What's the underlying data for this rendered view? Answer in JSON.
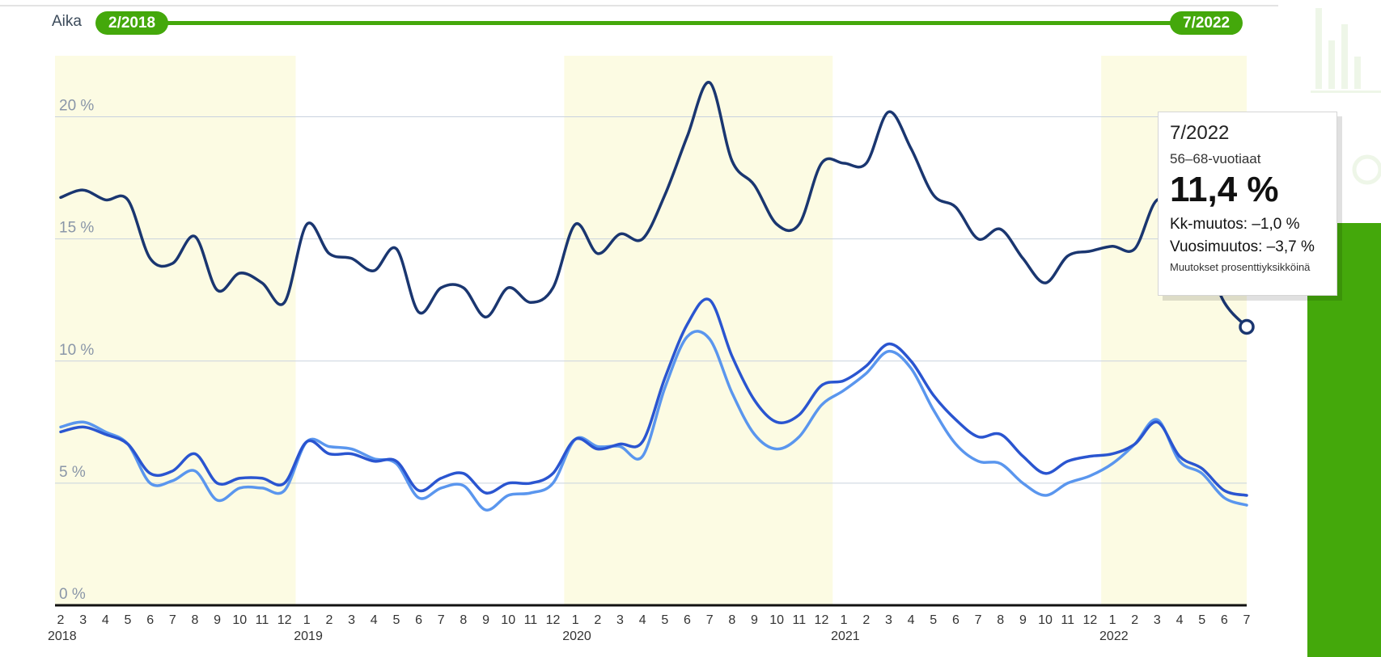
{
  "time_filter": {
    "label": "Aika",
    "start": "2/2018",
    "end": "7/2022"
  },
  "tooltip": {
    "date": "7/2022",
    "series": "56–68-vuotiaat",
    "value": "11,4 %",
    "month_change": "Kk-muutos: –1,0 %",
    "year_change": "Vuosimuutos: –3,7 %",
    "note": "Muutokset prosenttiyksikköinä"
  },
  "colors": {
    "accent_green": "#44a80b",
    "series_dark": "#1a3670",
    "series_mid": "#2a55d0",
    "series_light": "#5a96ee",
    "shade_band": "#fcfbe3"
  },
  "chart_data": {
    "type": "line",
    "x": [
      "2018-02",
      "2018-03",
      "2018-04",
      "2018-05",
      "2018-06",
      "2018-07",
      "2018-08",
      "2018-09",
      "2018-10",
      "2018-11",
      "2018-12",
      "2019-01",
      "2019-02",
      "2019-03",
      "2019-04",
      "2019-05",
      "2019-06",
      "2019-07",
      "2019-08",
      "2019-09",
      "2019-10",
      "2019-11",
      "2019-12",
      "2020-01",
      "2020-02",
      "2020-03",
      "2020-04",
      "2020-05",
      "2020-06",
      "2020-07",
      "2020-08",
      "2020-09",
      "2020-10",
      "2020-11",
      "2020-12",
      "2021-01",
      "2021-02",
      "2021-03",
      "2021-04",
      "2021-05",
      "2021-06",
      "2021-07",
      "2021-08",
      "2021-09",
      "2021-10",
      "2021-11",
      "2021-12",
      "2022-01",
      "2022-02",
      "2022-03",
      "2022-04",
      "2022-05",
      "2022-06",
      "2022-07"
    ],
    "tick_labels": [
      "2",
      "3",
      "4",
      "5",
      "6",
      "7",
      "8",
      "9",
      "10",
      "11",
      "12",
      "1",
      "2",
      "3",
      "4",
      "5",
      "6",
      "7",
      "8",
      "9",
      "10",
      "11",
      "12",
      "1",
      "2",
      "3",
      "4",
      "5",
      "6",
      "7",
      "8",
      "9",
      "10",
      "11",
      "12",
      "1",
      "2",
      "3",
      "4",
      "5",
      "6",
      "7",
      "8",
      "9",
      "10",
      "11",
      "12",
      "1",
      "2",
      "3",
      "4",
      "5",
      "6",
      "7"
    ],
    "year_labels": [
      {
        "index": 0,
        "label": "2018"
      },
      {
        "index": 11,
        "label": "2019"
      },
      {
        "index": 23,
        "label": "2020"
      },
      {
        "index": 35,
        "label": "2021"
      },
      {
        "index": 47,
        "label": "2022"
      }
    ],
    "y_ticks": [
      {
        "value": 0,
        "label": "0 %"
      },
      {
        "value": 5,
        "label": "5 %"
      },
      {
        "value": 10,
        "label": "10 %"
      },
      {
        "value": 15,
        "label": "15 %"
      },
      {
        "value": 20,
        "label": "20 %"
      }
    ],
    "ylim": [
      0,
      22.5
    ],
    "shaded_ranges": [
      [
        "2018-02",
        "2018-12"
      ],
      [
        "2020-01",
        "2020-12"
      ],
      [
        "2022-01",
        "2022-07"
      ]
    ],
    "series": [
      {
        "color": "#1a3670",
        "values": [
          16.7,
          17.0,
          16.6,
          16.6,
          14.2,
          14.0,
          15.1,
          12.9,
          13.6,
          13.2,
          12.4,
          15.6,
          14.4,
          14.2,
          13.7,
          14.6,
          12.0,
          13.0,
          13.0,
          11.8,
          13.0,
          12.4,
          13.0,
          15.6,
          14.4,
          15.2,
          15.0,
          16.8,
          19.2,
          21.4,
          18.2,
          17.2,
          15.6,
          15.6,
          18.1,
          18.1,
          18.1,
          20.2,
          18.7,
          16.8,
          16.3,
          15.0,
          15.4,
          14.2,
          13.2,
          14.3,
          14.5,
          14.7,
          14.6,
          16.6,
          15.8,
          14.5,
          12.4,
          11.4
        ]
      },
      {
        "color": "#2a55d0",
        "values": [
          7.1,
          7.3,
          7.0,
          6.6,
          5.4,
          5.5,
          6.2,
          5.0,
          5.2,
          5.2,
          5.0,
          6.7,
          6.2,
          6.2,
          5.9,
          5.9,
          4.7,
          5.2,
          5.4,
          4.6,
          5.0,
          5.0,
          5.4,
          6.8,
          6.4,
          6.6,
          6.7,
          9.3,
          11.5,
          12.5,
          10.2,
          8.4,
          7.5,
          7.8,
          9.0,
          9.2,
          9.8,
          10.7,
          10.0,
          8.6,
          7.6,
          6.9,
          7.0,
          6.1,
          5.4,
          5.9,
          6.1,
          6.2,
          6.6,
          7.5,
          6.1,
          5.6,
          4.7,
          4.5
        ]
      },
      {
        "color": "#5a96ee",
        "values": [
          7.3,
          7.5,
          7.1,
          6.6,
          5.0,
          5.1,
          5.5,
          4.3,
          4.8,
          4.8,
          4.7,
          6.7,
          6.5,
          6.4,
          6.0,
          5.8,
          4.4,
          4.8,
          4.9,
          3.9,
          4.5,
          4.6,
          5.0,
          6.8,
          6.5,
          6.5,
          6.1,
          8.9,
          11.0,
          10.9,
          8.7,
          7.0,
          6.4,
          6.9,
          8.2,
          8.8,
          9.5,
          10.4,
          9.7,
          8.0,
          6.6,
          5.9,
          5.8,
          5.0,
          4.5,
          5.0,
          5.3,
          5.8,
          6.6,
          7.6,
          5.9,
          5.4,
          4.4,
          4.1
        ]
      }
    ],
    "highlight": {
      "series_index": 0,
      "x_index": 53
    }
  }
}
